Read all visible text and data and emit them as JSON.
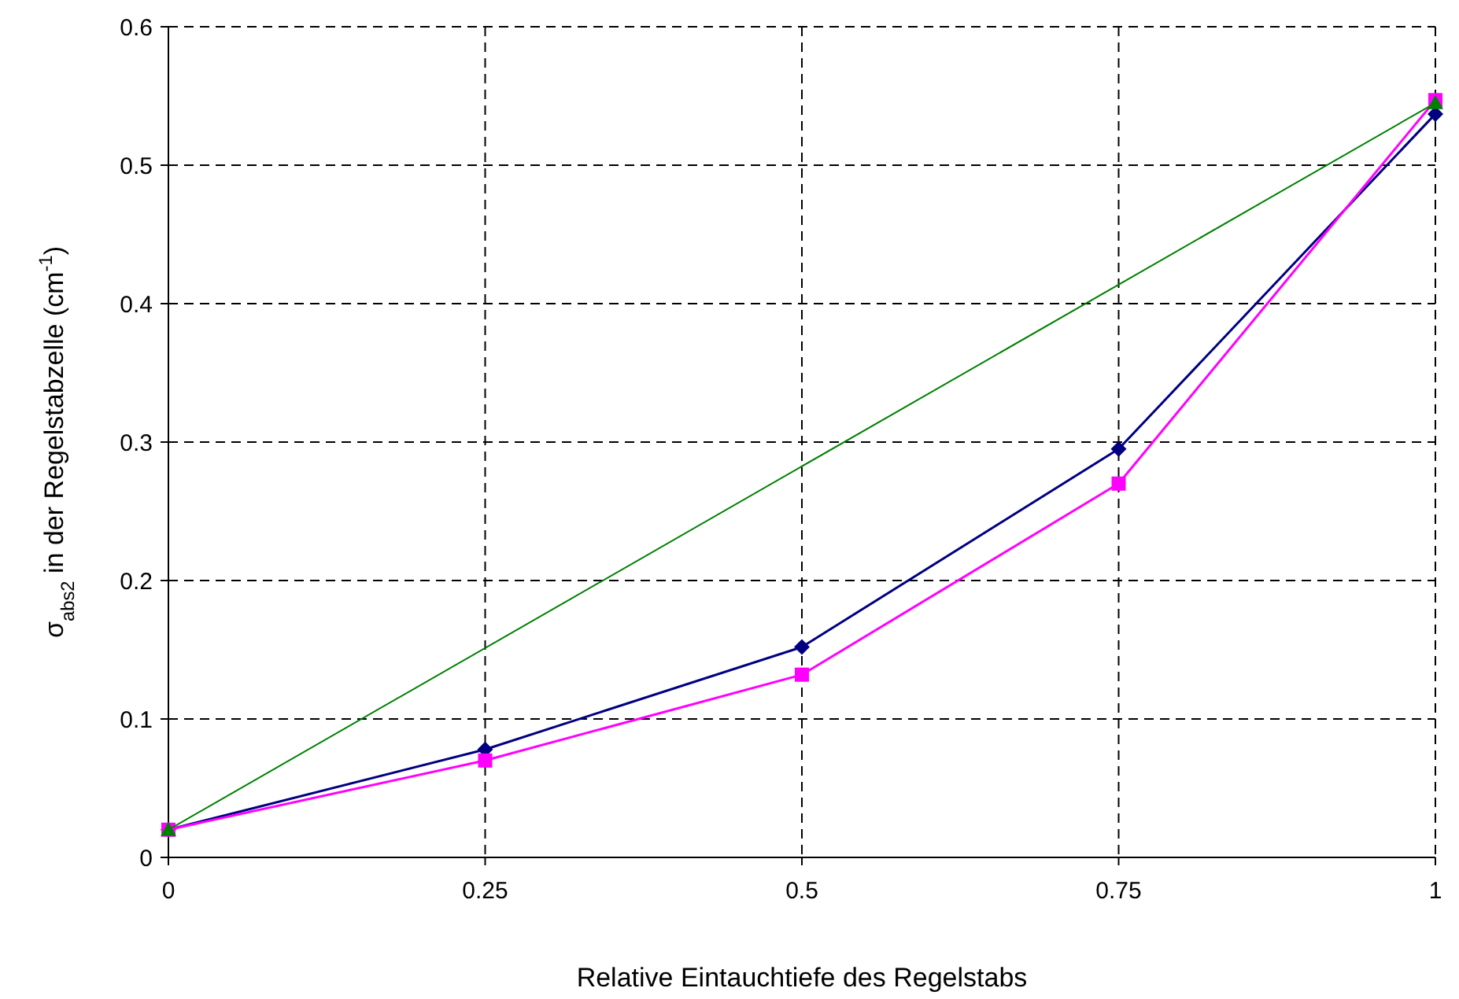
{
  "chart_data": {
    "type": "line",
    "xlabel": "Relative Eintauchtiefe des Regelstabs",
    "ylabel": "σ$_{abs2}$ in der Regelstabzelle (cm$^{-1}$)",
    "x": [
      0,
      0.25,
      0.5,
      0.75,
      1
    ],
    "series": [
      {
        "color": "#000080",
        "marker": "diamond",
        "values": [
          0.02,
          0.078,
          0.152,
          0.295,
          0.537
        ]
      },
      {
        "color": "#ff00ff",
        "marker": "square",
        "values": [
          0.02,
          0.07,
          0.132,
          0.27,
          0.547
        ]
      },
      {
        "color": "#008000",
        "marker": "triangle",
        "x": [
          0,
          1
        ],
        "values": [
          0.02,
          0.545
        ]
      }
    ],
    "xlim": [
      0,
      1
    ],
    "xticks": [
      0,
      0.25,
      0.5,
      0.75,
      1
    ],
    "ylim": [
      0,
      0.6
    ],
    "yticks": [
      0,
      0.1,
      0.2,
      0.3,
      0.4,
      0.5,
      0.6
    ],
    "grid": true
  }
}
